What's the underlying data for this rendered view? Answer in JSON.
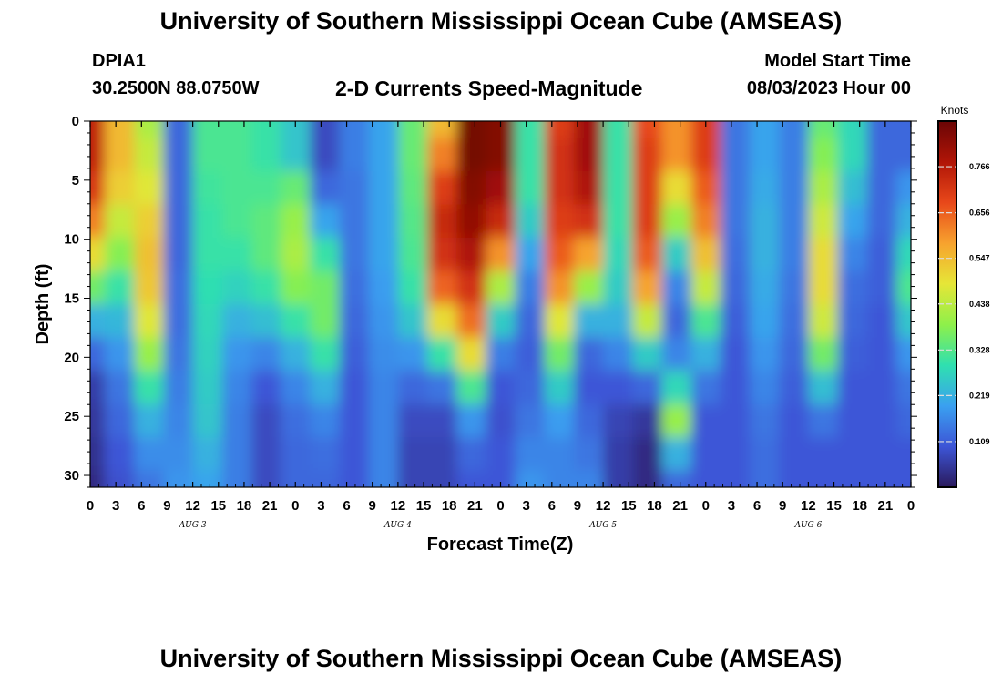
{
  "header": {
    "title": "University of Southern Mississippi Ocean Cube (AMSEAS)",
    "station": "DPIA1",
    "coordinates": "30.2500N  88.0750W",
    "plot_name": "2-D Currents Speed-Magnitude",
    "model_start_label": "Model Start Time",
    "model_start_value": "08/03/2023 Hour 00"
  },
  "footer": {
    "title": "University of Southern Mississippi Ocean Cube (AMSEAS)"
  },
  "chart_data": {
    "type": "heatmap",
    "title": "2-D Currents Speed-Magnitude",
    "xlabel": "Forecast Time(Z)",
    "ylabel": "Depth (ft)",
    "x_tick_labels": [
      "0",
      "3",
      "6",
      "9",
      "12",
      "15",
      "18",
      "21",
      "0",
      "3",
      "6",
      "9",
      "12",
      "15",
      "18",
      "21",
      "0",
      "3",
      "6",
      "9",
      "12",
      "15",
      "18",
      "21",
      "0",
      "3",
      "6",
      "9",
      "12",
      "15",
      "18",
      "21",
      "0"
    ],
    "x_range_hours": [
      0,
      96
    ],
    "date_labels": [
      "AUG 3",
      "AUG 4",
      "AUG 5",
      "AUG 6"
    ],
    "date_label_hours": [
      12,
      36,
      60,
      84
    ],
    "y_ticks": [
      0,
      5,
      10,
      15,
      20,
      25,
      30
    ],
    "y_range_ft": [
      0,
      31
    ],
    "y_inverted": true,
    "colorbar": {
      "title": "Knots",
      "ticks": [
        0.109,
        0.219,
        0.328,
        0.438,
        0.547,
        0.656,
        0.766
      ],
      "range": [
        0,
        0.875
      ],
      "colors": [
        "#2a1a5c",
        "#3d55d6",
        "#3aa0f0",
        "#2fe0b0",
        "#8ef04a",
        "#e6e637",
        "#f7a22e",
        "#e8481a",
        "#b01507",
        "#6a0505"
      ]
    },
    "speed_knots": [
      [
        0.75,
        0.75,
        0.71,
        0.62,
        0.5,
        0.36,
        0.22,
        0.12,
        0.06,
        0.05,
        0.04,
        0.03
      ],
      [
        0.55,
        0.55,
        0.52,
        0.45,
        0.38,
        0.3,
        0.23,
        0.18,
        0.14,
        0.12,
        0.1,
        0.09
      ],
      [
        0.42,
        0.45,
        0.48,
        0.52,
        0.54,
        0.53,
        0.48,
        0.4,
        0.3,
        0.22,
        0.17,
        0.14
      ],
      [
        0.12,
        0.12,
        0.12,
        0.12,
        0.12,
        0.13,
        0.13,
        0.14,
        0.15,
        0.16,
        0.17,
        0.18
      ],
      [
        0.32,
        0.32,
        0.31,
        0.3,
        0.3,
        0.29,
        0.28,
        0.27,
        0.26,
        0.25,
        0.22,
        0.2
      ],
      [
        0.32,
        0.32,
        0.32,
        0.32,
        0.3,
        0.27,
        0.22,
        0.18,
        0.16,
        0.15,
        0.15,
        0.15
      ],
      [
        0.3,
        0.3,
        0.32,
        0.34,
        0.34,
        0.3,
        0.24,
        0.16,
        0.1,
        0.08,
        0.08,
        0.08
      ],
      [
        0.25,
        0.25,
        0.35,
        0.4,
        0.42,
        0.38,
        0.3,
        0.22,
        0.16,
        0.13,
        0.12,
        0.12
      ],
      [
        0.08,
        0.08,
        0.12,
        0.2,
        0.3,
        0.36,
        0.36,
        0.3,
        0.22,
        0.16,
        0.13,
        0.12
      ],
      [
        0.15,
        0.15,
        0.14,
        0.14,
        0.14,
        0.13,
        0.12,
        0.11,
        0.1,
        0.1,
        0.1,
        0.1
      ],
      [
        0.2,
        0.2,
        0.2,
        0.2,
        0.2,
        0.19,
        0.18,
        0.17,
        0.16,
        0.16,
        0.16,
        0.16
      ],
      [
        0.35,
        0.35,
        0.34,
        0.33,
        0.32,
        0.3,
        0.25,
        0.18,
        0.12,
        0.08,
        0.07,
        0.07
      ],
      [
        0.55,
        0.62,
        0.7,
        0.74,
        0.72,
        0.65,
        0.5,
        0.3,
        0.14,
        0.08,
        0.07,
        0.07
      ],
      [
        0.86,
        0.86,
        0.84,
        0.82,
        0.78,
        0.72,
        0.64,
        0.5,
        0.32,
        0.18,
        0.12,
        0.1
      ],
      [
        0.84,
        0.84,
        0.8,
        0.74,
        0.6,
        0.42,
        0.26,
        0.15,
        0.1,
        0.09,
        0.1,
        0.1
      ],
      [
        0.3,
        0.3,
        0.3,
        0.26,
        0.2,
        0.15,
        0.12,
        0.11,
        0.12,
        0.14,
        0.16,
        0.18
      ],
      [
        0.7,
        0.72,
        0.72,
        0.7,
        0.66,
        0.6,
        0.48,
        0.36,
        0.26,
        0.19,
        0.16,
        0.16
      ],
      [
        0.8,
        0.8,
        0.78,
        0.72,
        0.58,
        0.4,
        0.22,
        0.12,
        0.1,
        0.12,
        0.14,
        0.16
      ],
      [
        0.3,
        0.3,
        0.3,
        0.3,
        0.28,
        0.26,
        0.22,
        0.16,
        0.1,
        0.07,
        0.06,
        0.06
      ],
      [
        0.68,
        0.7,
        0.7,
        0.7,
        0.66,
        0.58,
        0.45,
        0.26,
        0.12,
        0.05,
        0.03,
        0.03
      ],
      [
        0.6,
        0.6,
        0.5,
        0.4,
        0.26,
        0.16,
        0.12,
        0.16,
        0.28,
        0.4,
        0.22,
        0.12
      ],
      [
        0.7,
        0.7,
        0.66,
        0.62,
        0.54,
        0.45,
        0.32,
        0.22,
        0.14,
        0.1,
        0.1,
        0.1
      ],
      [
        0.14,
        0.14,
        0.14,
        0.14,
        0.13,
        0.12,
        0.11,
        0.1,
        0.1,
        0.1,
        0.1,
        0.1
      ],
      [
        0.2,
        0.2,
        0.21,
        0.22,
        0.22,
        0.21,
        0.2,
        0.18,
        0.16,
        0.14,
        0.13,
        0.13
      ],
      [
        0.15,
        0.15,
        0.15,
        0.15,
        0.15,
        0.14,
        0.13,
        0.12,
        0.11,
        0.1,
        0.1,
        0.1
      ],
      [
        0.35,
        0.38,
        0.42,
        0.46,
        0.5,
        0.5,
        0.46,
        0.36,
        0.24,
        0.14,
        0.1,
        0.1
      ],
      [
        0.28,
        0.28,
        0.24,
        0.2,
        0.16,
        0.13,
        0.12,
        0.11,
        0.1,
        0.1,
        0.1,
        0.1
      ],
      [
        0.12,
        0.12,
        0.12,
        0.12,
        0.11,
        0.11,
        0.1,
        0.1,
        0.1,
        0.1,
        0.1,
        0.1
      ],
      [
        0.12,
        0.12,
        0.18,
        0.22,
        0.28,
        0.32,
        0.25,
        0.18,
        0.14,
        0.12,
        0.1,
        0.1
      ]
    ]
  }
}
